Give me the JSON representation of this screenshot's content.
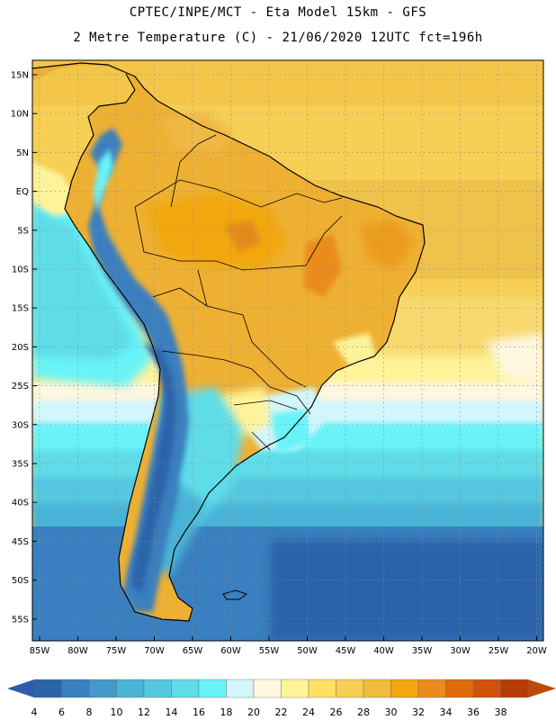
{
  "header": {
    "line1": "CPTEC/INPE/MCT -  Eta Model 15km - GFS",
    "line2": "2 Metre Temperature (C) - 21/06/2020 12UTC fct=196h"
  },
  "map": {
    "region": "South America",
    "lat_labels": [
      "15N",
      "10N",
      "5N",
      "EQ",
      "5S",
      "10S",
      "15S",
      "20S",
      "25S",
      "30S",
      "35S",
      "40S",
      "45S",
      "50S",
      "55S"
    ],
    "lon_labels": [
      "85W",
      "80W",
      "75W",
      "70W",
      "65W",
      "60W",
      "55W",
      "50W",
      "45W",
      "40W",
      "35W",
      "30W",
      "25W",
      "20W"
    ]
  },
  "colorbar": {
    "labels": [
      "4",
      "6",
      "8",
      "10",
      "12",
      "14",
      "16",
      "18",
      "20",
      "22",
      "24",
      "26",
      "28",
      "30",
      "32",
      "34",
      "36",
      "38"
    ],
    "colors": [
      "#2b64aa",
      "#3a7fbf",
      "#4399c9",
      "#4ab3d6",
      "#55c7df",
      "#5edce8",
      "#69f3f8",
      "#d2f6fb",
      "#fff7df",
      "#fff39a",
      "#ffe066",
      "#f6cf54",
      "#efbc3c",
      "#f1a70d",
      "#eb8b1f",
      "#e06a0c",
      "#d1520b",
      "#b83c06"
    ],
    "low_arrow_color": "#2c5cab",
    "high_arrow_color": "#bb4a09"
  }
}
